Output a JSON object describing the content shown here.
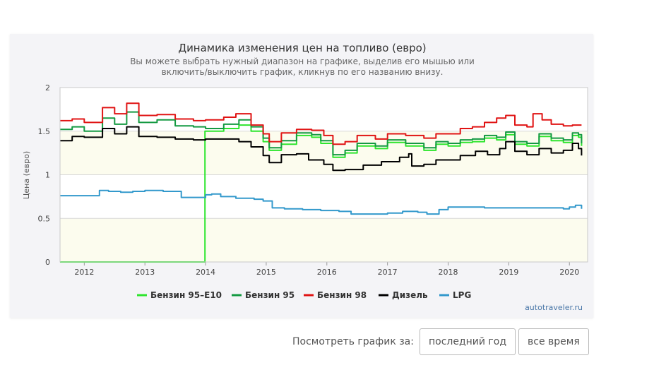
{
  "colors": {
    "e10": "#2ee52e",
    "ai95": "#149a42",
    "ai98": "#e01414",
    "diesel": "#000000",
    "lpg": "#3399cc",
    "plot_bg": "#fcfcee",
    "card_bg": "#f4f4f7"
  },
  "chart_data": {
    "type": "line",
    "title": "Динамика изменения цен на топливо (евро)",
    "subtitle_lines": [
      "Вы можете выбрать нужный диапазон на графике, выделив его мышью или",
      "включить/выключить график, кликнув по его названию внизу."
    ],
    "ylabel": "Цена (евро)",
    "xlabel": "",
    "xlim": [
      2011.6,
      2020.3
    ],
    "ylim": [
      0,
      2
    ],
    "x_ticks": [
      "2012",
      "2013",
      "2014",
      "2015",
      "2016",
      "2017",
      "2018",
      "2019",
      "2020"
    ],
    "y_ticks": [
      "0",
      "0.5",
      "1",
      "1.5",
      "2"
    ],
    "grid": true,
    "legend_position": "bottom",
    "credit": "autotraveler.ru",
    "series": [
      {
        "name": "Бензин 95–E10",
        "color": "#2ee52e",
        "x": [
          2011.6,
          2013.98,
          2013.99,
          2014.05,
          2014.3,
          2014.55,
          2014.75,
          2014.95,
          2015.05,
          2015.25,
          2015.5,
          2015.75,
          2015.9,
          2016.1,
          2016.3,
          2016.5,
          2016.8,
          2017.0,
          2017.3,
          2017.6,
          2017.8,
          2018.0,
          2018.2,
          2018.4,
          2018.6,
          2018.8,
          2018.95,
          2019.1,
          2019.3,
          2019.5,
          2019.7,
          2019.9,
          2020.05,
          2020.15,
          2020.2
        ],
        "y": [
          0,
          0,
          1.5,
          1.5,
          1.53,
          1.57,
          1.5,
          1.38,
          1.28,
          1.35,
          1.45,
          1.43,
          1.36,
          1.2,
          1.25,
          1.33,
          1.3,
          1.37,
          1.33,
          1.28,
          1.35,
          1.33,
          1.37,
          1.38,
          1.42,
          1.4,
          1.46,
          1.35,
          1.33,
          1.44,
          1.39,
          1.37,
          1.45,
          1.43,
          1.33
        ]
      },
      {
        "name": "Бензин 95",
        "color": "#149a42",
        "x": [
          2011.6,
          2011.8,
          2012.0,
          2012.3,
          2012.5,
          2012.7,
          2012.9,
          2013.2,
          2013.5,
          2013.8,
          2014.0,
          2014.3,
          2014.55,
          2014.75,
          2014.95,
          2015.05,
          2015.25,
          2015.5,
          2015.75,
          2015.9,
          2016.1,
          2016.3,
          2016.5,
          2016.8,
          2017.0,
          2017.3,
          2017.6,
          2017.8,
          2018.0,
          2018.2,
          2018.4,
          2018.6,
          2018.8,
          2018.95,
          2019.1,
          2019.3,
          2019.5,
          2019.7,
          2019.9,
          2020.05,
          2020.15,
          2020.2
        ],
        "y": [
          1.52,
          1.55,
          1.5,
          1.65,
          1.58,
          1.72,
          1.6,
          1.63,
          1.56,
          1.55,
          1.53,
          1.58,
          1.63,
          1.55,
          1.42,
          1.31,
          1.39,
          1.48,
          1.46,
          1.39,
          1.23,
          1.28,
          1.36,
          1.33,
          1.4,
          1.36,
          1.31,
          1.38,
          1.36,
          1.4,
          1.41,
          1.45,
          1.43,
          1.49,
          1.38,
          1.36,
          1.47,
          1.42,
          1.4,
          1.48,
          1.46,
          1.36
        ]
      },
      {
        "name": "Бензин 98",
        "color": "#e01414",
        "x": [
          2011.6,
          2011.8,
          2012.0,
          2012.3,
          2012.5,
          2012.7,
          2012.9,
          2013.2,
          2013.5,
          2013.8,
          2014.0,
          2014.3,
          2014.5,
          2014.75,
          2014.95,
          2015.05,
          2015.25,
          2015.5,
          2015.75,
          2015.95,
          2016.1,
          2016.3,
          2016.5,
          2016.8,
          2017.0,
          2017.3,
          2017.6,
          2017.8,
          2018.0,
          2018.2,
          2018.4,
          2018.6,
          2018.8,
          2018.95,
          2019.1,
          2019.3,
          2019.4,
          2019.55,
          2019.7,
          2019.9,
          2020.05,
          2020.2
        ],
        "y": [
          1.62,
          1.64,
          1.6,
          1.77,
          1.7,
          1.82,
          1.68,
          1.69,
          1.64,
          1.62,
          1.63,
          1.66,
          1.7,
          1.57,
          1.47,
          1.38,
          1.48,
          1.52,
          1.51,
          1.45,
          1.35,
          1.38,
          1.45,
          1.41,
          1.47,
          1.45,
          1.42,
          1.47,
          1.47,
          1.53,
          1.55,
          1.6,
          1.65,
          1.68,
          1.57,
          1.55,
          1.7,
          1.63,
          1.58,
          1.56,
          1.57,
          1.57
        ]
      },
      {
        "name": "Дизель",
        "color": "#000000",
        "x": [
          2011.6,
          2011.8,
          2012.0,
          2012.3,
          2012.5,
          2012.7,
          2012.9,
          2013.2,
          2013.5,
          2013.8,
          2014.0,
          2014.3,
          2014.55,
          2014.75,
          2014.95,
          2015.05,
          2015.25,
          2015.5,
          2015.7,
          2015.95,
          2016.1,
          2016.3,
          2016.6,
          2016.9,
          2017.2,
          2017.35,
          2017.4,
          2017.6,
          2017.8,
          2018.0,
          2018.2,
          2018.45,
          2018.65,
          2018.85,
          2018.95,
          2019.1,
          2019.3,
          2019.5,
          2019.7,
          2019.9,
          2020.05,
          2020.15,
          2020.2
        ],
        "y": [
          1.39,
          1.44,
          1.43,
          1.53,
          1.47,
          1.55,
          1.44,
          1.43,
          1.41,
          1.4,
          1.41,
          1.41,
          1.38,
          1.32,
          1.22,
          1.14,
          1.23,
          1.24,
          1.17,
          1.12,
          1.05,
          1.06,
          1.11,
          1.15,
          1.2,
          1.24,
          1.1,
          1.12,
          1.17,
          1.17,
          1.22,
          1.27,
          1.23,
          1.3,
          1.38,
          1.27,
          1.23,
          1.3,
          1.25,
          1.28,
          1.36,
          1.3,
          1.22
        ]
      },
      {
        "name": "LPG",
        "color": "#3399cc",
        "x": [
          2011.6,
          2011.8,
          2012.1,
          2012.25,
          2012.4,
          2012.6,
          2012.8,
          2013.0,
          2013.3,
          2013.6,
          2013.8,
          2014.0,
          2014.1,
          2014.25,
          2014.5,
          2014.8,
          2014.95,
          2015.1,
          2015.3,
          2015.6,
          2015.9,
          2016.2,
          2016.4,
          2016.7,
          2017.0,
          2017.25,
          2017.5,
          2017.65,
          2017.8,
          2017.85,
          2018.0,
          2018.3,
          2018.6,
          2019.0,
          2019.5,
          2019.9,
          2020.0,
          2020.1,
          2020.15,
          2020.2
        ],
        "y": [
          0.76,
          0.76,
          0.76,
          0.82,
          0.81,
          0.8,
          0.81,
          0.82,
          0.81,
          0.74,
          0.74,
          0.77,
          0.78,
          0.75,
          0.73,
          0.72,
          0.7,
          0.62,
          0.61,
          0.6,
          0.59,
          0.58,
          0.55,
          0.55,
          0.56,
          0.58,
          0.57,
          0.55,
          0.55,
          0.6,
          0.63,
          0.63,
          0.62,
          0.62,
          0.62,
          0.61,
          0.63,
          0.65,
          0.65,
          0.61
        ]
      }
    ]
  },
  "controls": {
    "label": "Посмотреть график за:",
    "buttons": [
      "последний год",
      "все время"
    ]
  }
}
